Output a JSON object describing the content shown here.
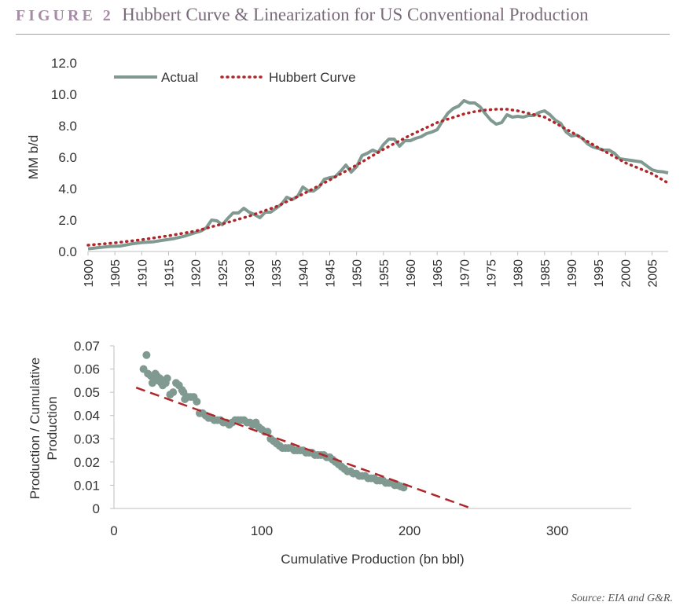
{
  "header": {
    "figure_label": "FIGURE 2",
    "title": "Hubbert Curve & Linearization for US Conventional Production"
  },
  "source": "Source: EIA and G&R.",
  "colors": {
    "actual": "#809a92",
    "hubbert": "#b0262a",
    "scatter": "#809a92",
    "trend": "#b0262a",
    "axis": "#bfbfbf"
  },
  "chart_data": [
    {
      "type": "line",
      "title": "",
      "xlabel": "",
      "ylabel": "MM b/d",
      "ylim": [
        0,
        12
      ],
      "xlim": [
        1900,
        2008
      ],
      "y_ticks": [
        "0.0",
        "2.0",
        "4.0",
        "6.0",
        "8.0",
        "10.0",
        "12.0"
      ],
      "x_ticks": [
        "1900",
        "1905",
        "1910",
        "1915",
        "1920",
        "1925",
        "1930",
        "1935",
        "1940",
        "1945",
        "1950",
        "1955",
        "1960",
        "1965",
        "1970",
        "1975",
        "1980",
        "1985",
        "1990",
        "1995",
        "2000",
        "2005"
      ],
      "legend": "top-left",
      "grid": false,
      "series": [
        {
          "name": "Actual",
          "style": "solid",
          "x": [
            1900,
            1902,
            1904,
            1906,
            1908,
            1910,
            1912,
            1914,
            1916,
            1918,
            1920,
            1921,
            1922,
            1923,
            1924,
            1925,
            1926,
            1927,
            1928,
            1929,
            1930,
            1931,
            1932,
            1933,
            1934,
            1935,
            1936,
            1937,
            1938,
            1939,
            1940,
            1941,
            1942,
            1943,
            1944,
            1945,
            1946,
            1947,
            1948,
            1949,
            1950,
            1951,
            1952,
            1953,
            1954,
            1955,
            1956,
            1957,
            1958,
            1959,
            1960,
            1961,
            1962,
            1963,
            1964,
            1965,
            1966,
            1967,
            1968,
            1969,
            1970,
            1971,
            1972,
            1973,
            1974,
            1975,
            1976,
            1977,
            1978,
            1979,
            1980,
            1981,
            1982,
            1983,
            1984,
            1985,
            1986,
            1987,
            1988,
            1989,
            1990,
            1991,
            1992,
            1993,
            1994,
            1995,
            1996,
            1997,
            1998,
            1999,
            2000,
            2001,
            2002,
            2003,
            2004,
            2005,
            2006,
            2007,
            2008
          ],
          "y": [
            0.17,
            0.25,
            0.32,
            0.35,
            0.48,
            0.57,
            0.61,
            0.72,
            0.82,
            0.98,
            1.2,
            1.3,
            1.5,
            2.0,
            1.95,
            1.7,
            2.1,
            2.45,
            2.45,
            2.75,
            2.5,
            2.35,
            2.15,
            2.5,
            2.5,
            2.75,
            3.0,
            3.45,
            3.3,
            3.5,
            4.1,
            3.85,
            3.85,
            4.1,
            4.6,
            4.7,
            4.75,
            5.1,
            5.5,
            5.05,
            5.4,
            6.1,
            6.25,
            6.45,
            6.3,
            6.8,
            7.15,
            7.15,
            6.7,
            7.05,
            7.05,
            7.2,
            7.3,
            7.5,
            7.6,
            7.75,
            8.3,
            8.8,
            9.1,
            9.25,
            9.6,
            9.45,
            9.45,
            9.2,
            8.75,
            8.35,
            8.1,
            8.2,
            8.7,
            8.55,
            8.6,
            8.55,
            8.65,
            8.65,
            8.85,
            8.95,
            8.7,
            8.35,
            8.15,
            7.6,
            7.35,
            7.4,
            7.2,
            6.85,
            6.65,
            6.55,
            6.45,
            6.45,
            6.25,
            5.9,
            5.85,
            5.8,
            5.75,
            5.7,
            5.45,
            5.2,
            5.1,
            5.07,
            5.0
          ]
        },
        {
          "name": "Hubbert Curve",
          "style": "dotted",
          "x": [
            1900,
            1905,
            1910,
            1915,
            1920,
            1925,
            1930,
            1935,
            1940,
            1945,
            1950,
            1955,
            1960,
            1965,
            1970,
            1972,
            1974,
            1976,
            1978,
            1980,
            1985,
            1990,
            1995,
            2000,
            2005,
            2008
          ],
          "y": [
            0.4,
            0.55,
            0.75,
            1.0,
            1.3,
            1.75,
            2.25,
            2.85,
            3.65,
            4.55,
            5.5,
            6.5,
            7.4,
            8.2,
            8.75,
            8.9,
            9.0,
            9.05,
            9.05,
            8.95,
            8.55,
            7.6,
            6.6,
            5.65,
            4.95,
            4.35
          ]
        }
      ]
    },
    {
      "type": "scatter",
      "title": "",
      "xlabel": "Cumulative Production (bn bbl)",
      "ylabel": "Production / Cumulative Production",
      "xlim": [
        0,
        350
      ],
      "ylim": [
        0,
        0.07
      ],
      "x_ticks": [
        "0",
        "100",
        "200",
        "300"
      ],
      "y_ticks": [
        "0",
        "0.01",
        "0.02",
        "0.03",
        "0.04",
        "0.05",
        "0.06",
        "0.07"
      ],
      "grid": false,
      "points": [
        [
          20,
          0.06
        ],
        [
          22,
          0.066
        ],
        [
          23,
          0.058
        ],
        [
          25,
          0.057
        ],
        [
          26,
          0.054
        ],
        [
          27,
          0.056
        ],
        [
          28,
          0.058
        ],
        [
          29,
          0.057
        ],
        [
          30,
          0.055
        ],
        [
          31,
          0.056
        ],
        [
          32,
          0.054
        ],
        [
          33,
          0.053
        ],
        [
          34,
          0.055
        ],
        [
          35,
          0.054
        ],
        [
          36,
          0.056
        ],
        [
          38,
          0.049
        ],
        [
          40,
          0.05
        ],
        [
          42,
          0.054
        ],
        [
          44,
          0.053
        ],
        [
          46,
          0.051
        ],
        [
          47,
          0.05
        ],
        [
          48,
          0.047
        ],
        [
          50,
          0.048
        ],
        [
          52,
          0.048
        ],
        [
          54,
          0.048
        ],
        [
          56,
          0.046
        ],
        [
          58,
          0.041
        ],
        [
          60,
          0.041
        ],
        [
          62,
          0.04
        ],
        [
          64,
          0.039
        ],
        [
          66,
          0.039
        ],
        [
          68,
          0.038
        ],
        [
          70,
          0.038
        ],
        [
          72,
          0.038
        ],
        [
          74,
          0.037
        ],
        [
          76,
          0.037
        ],
        [
          78,
          0.036
        ],
        [
          80,
          0.037
        ],
        [
          82,
          0.038
        ],
        [
          84,
          0.038
        ],
        [
          86,
          0.038
        ],
        [
          88,
          0.038
        ],
        [
          90,
          0.037
        ],
        [
          92,
          0.037
        ],
        [
          94,
          0.036
        ],
        [
          96,
          0.037
        ],
        [
          98,
          0.035
        ],
        [
          100,
          0.034
        ],
        [
          102,
          0.033
        ],
        [
          104,
          0.033
        ],
        [
          106,
          0.03
        ],
        [
          108,
          0.029
        ],
        [
          110,
          0.028
        ],
        [
          112,
          0.027
        ],
        [
          114,
          0.026
        ],
        [
          116,
          0.026
        ],
        [
          118,
          0.026
        ],
        [
          120,
          0.026
        ],
        [
          122,
          0.025
        ],
        [
          124,
          0.025
        ],
        [
          126,
          0.025
        ],
        [
          128,
          0.025
        ],
        [
          130,
          0.024
        ],
        [
          132,
          0.024
        ],
        [
          134,
          0.024
        ],
        [
          136,
          0.023
        ],
        [
          138,
          0.023
        ],
        [
          140,
          0.023
        ],
        [
          142,
          0.023
        ],
        [
          144,
          0.022
        ],
        [
          146,
          0.022
        ],
        [
          148,
          0.021
        ],
        [
          150,
          0.02
        ],
        [
          152,
          0.019
        ],
        [
          154,
          0.018
        ],
        [
          156,
          0.017
        ],
        [
          158,
          0.016
        ],
        [
          160,
          0.016
        ],
        [
          162,
          0.015
        ],
        [
          164,
          0.015
        ],
        [
          166,
          0.014
        ],
        [
          168,
          0.014
        ],
        [
          170,
          0.014
        ],
        [
          172,
          0.013
        ],
        [
          174,
          0.013
        ],
        [
          176,
          0.013
        ],
        [
          178,
          0.012
        ],
        [
          180,
          0.012
        ],
        [
          182,
          0.012
        ],
        [
          184,
          0.011
        ],
        [
          186,
          0.011
        ],
        [
          188,
          0.011
        ],
        [
          190,
          0.01
        ],
        [
          192,
          0.01
        ],
        [
          194,
          0.0095
        ],
        [
          196,
          0.009
        ]
      ],
      "trendline": {
        "style": "dashed",
        "from": [
          15,
          0.052
        ],
        "to": [
          242,
          0
        ]
      }
    }
  ]
}
